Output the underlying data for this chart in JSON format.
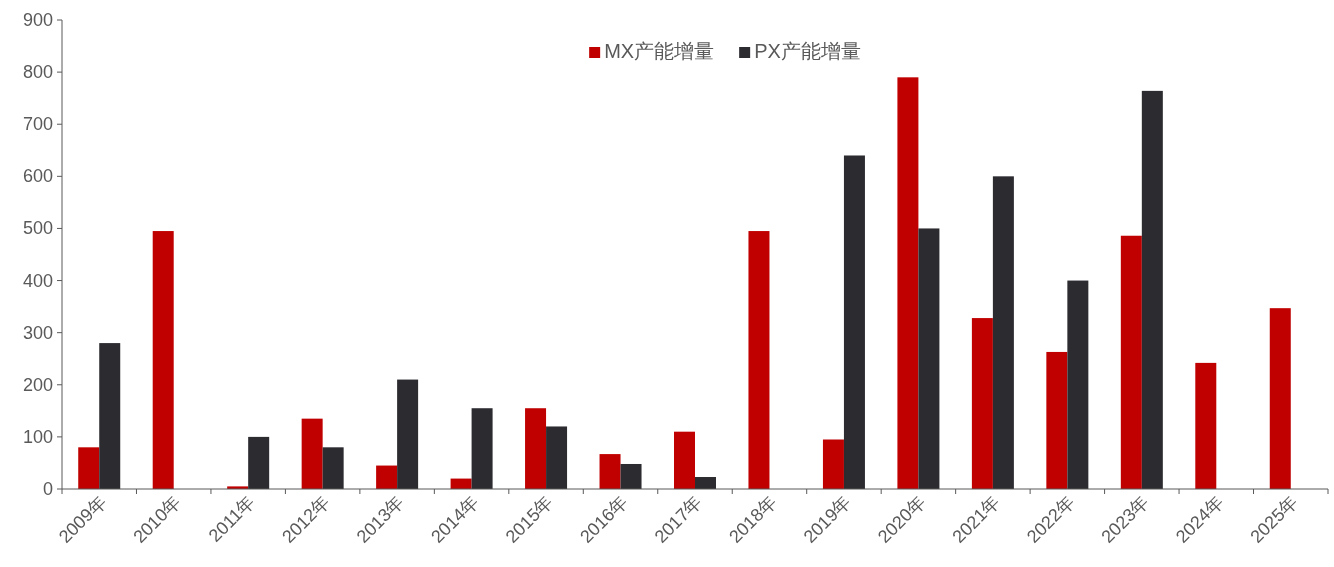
{
  "chart_data": {
    "type": "bar",
    "categories": [
      "2009年",
      "2010年",
      "2011年",
      "2012年",
      "2013年",
      "2014年",
      "2015年",
      "2016年",
      "2017年",
      "2018年",
      "2019年",
      "2020年",
      "2021年",
      "2022年",
      "2023年",
      "2024年",
      "2025年"
    ],
    "series": [
      {
        "name": "MX产能增量",
        "color": "#c00000",
        "values": [
          80,
          495,
          5,
          135,
          45,
          20,
          155,
          67,
          110,
          495,
          95,
          790,
          328,
          263,
          486,
          242,
          347
        ]
      },
      {
        "name": "PX产能增量",
        "color": "#2b2b30",
        "values": [
          280,
          null,
          100,
          80,
          210,
          155,
          120,
          48,
          23,
          null,
          640,
          500,
          600,
          400,
          764,
          null,
          null
        ]
      }
    ],
    "ylim": [
      0,
      900
    ],
    "yticks": [
      0,
      100,
      200,
      300,
      400,
      500,
      600,
      700,
      800,
      900
    ],
    "grid": false,
    "legend": "top"
  }
}
